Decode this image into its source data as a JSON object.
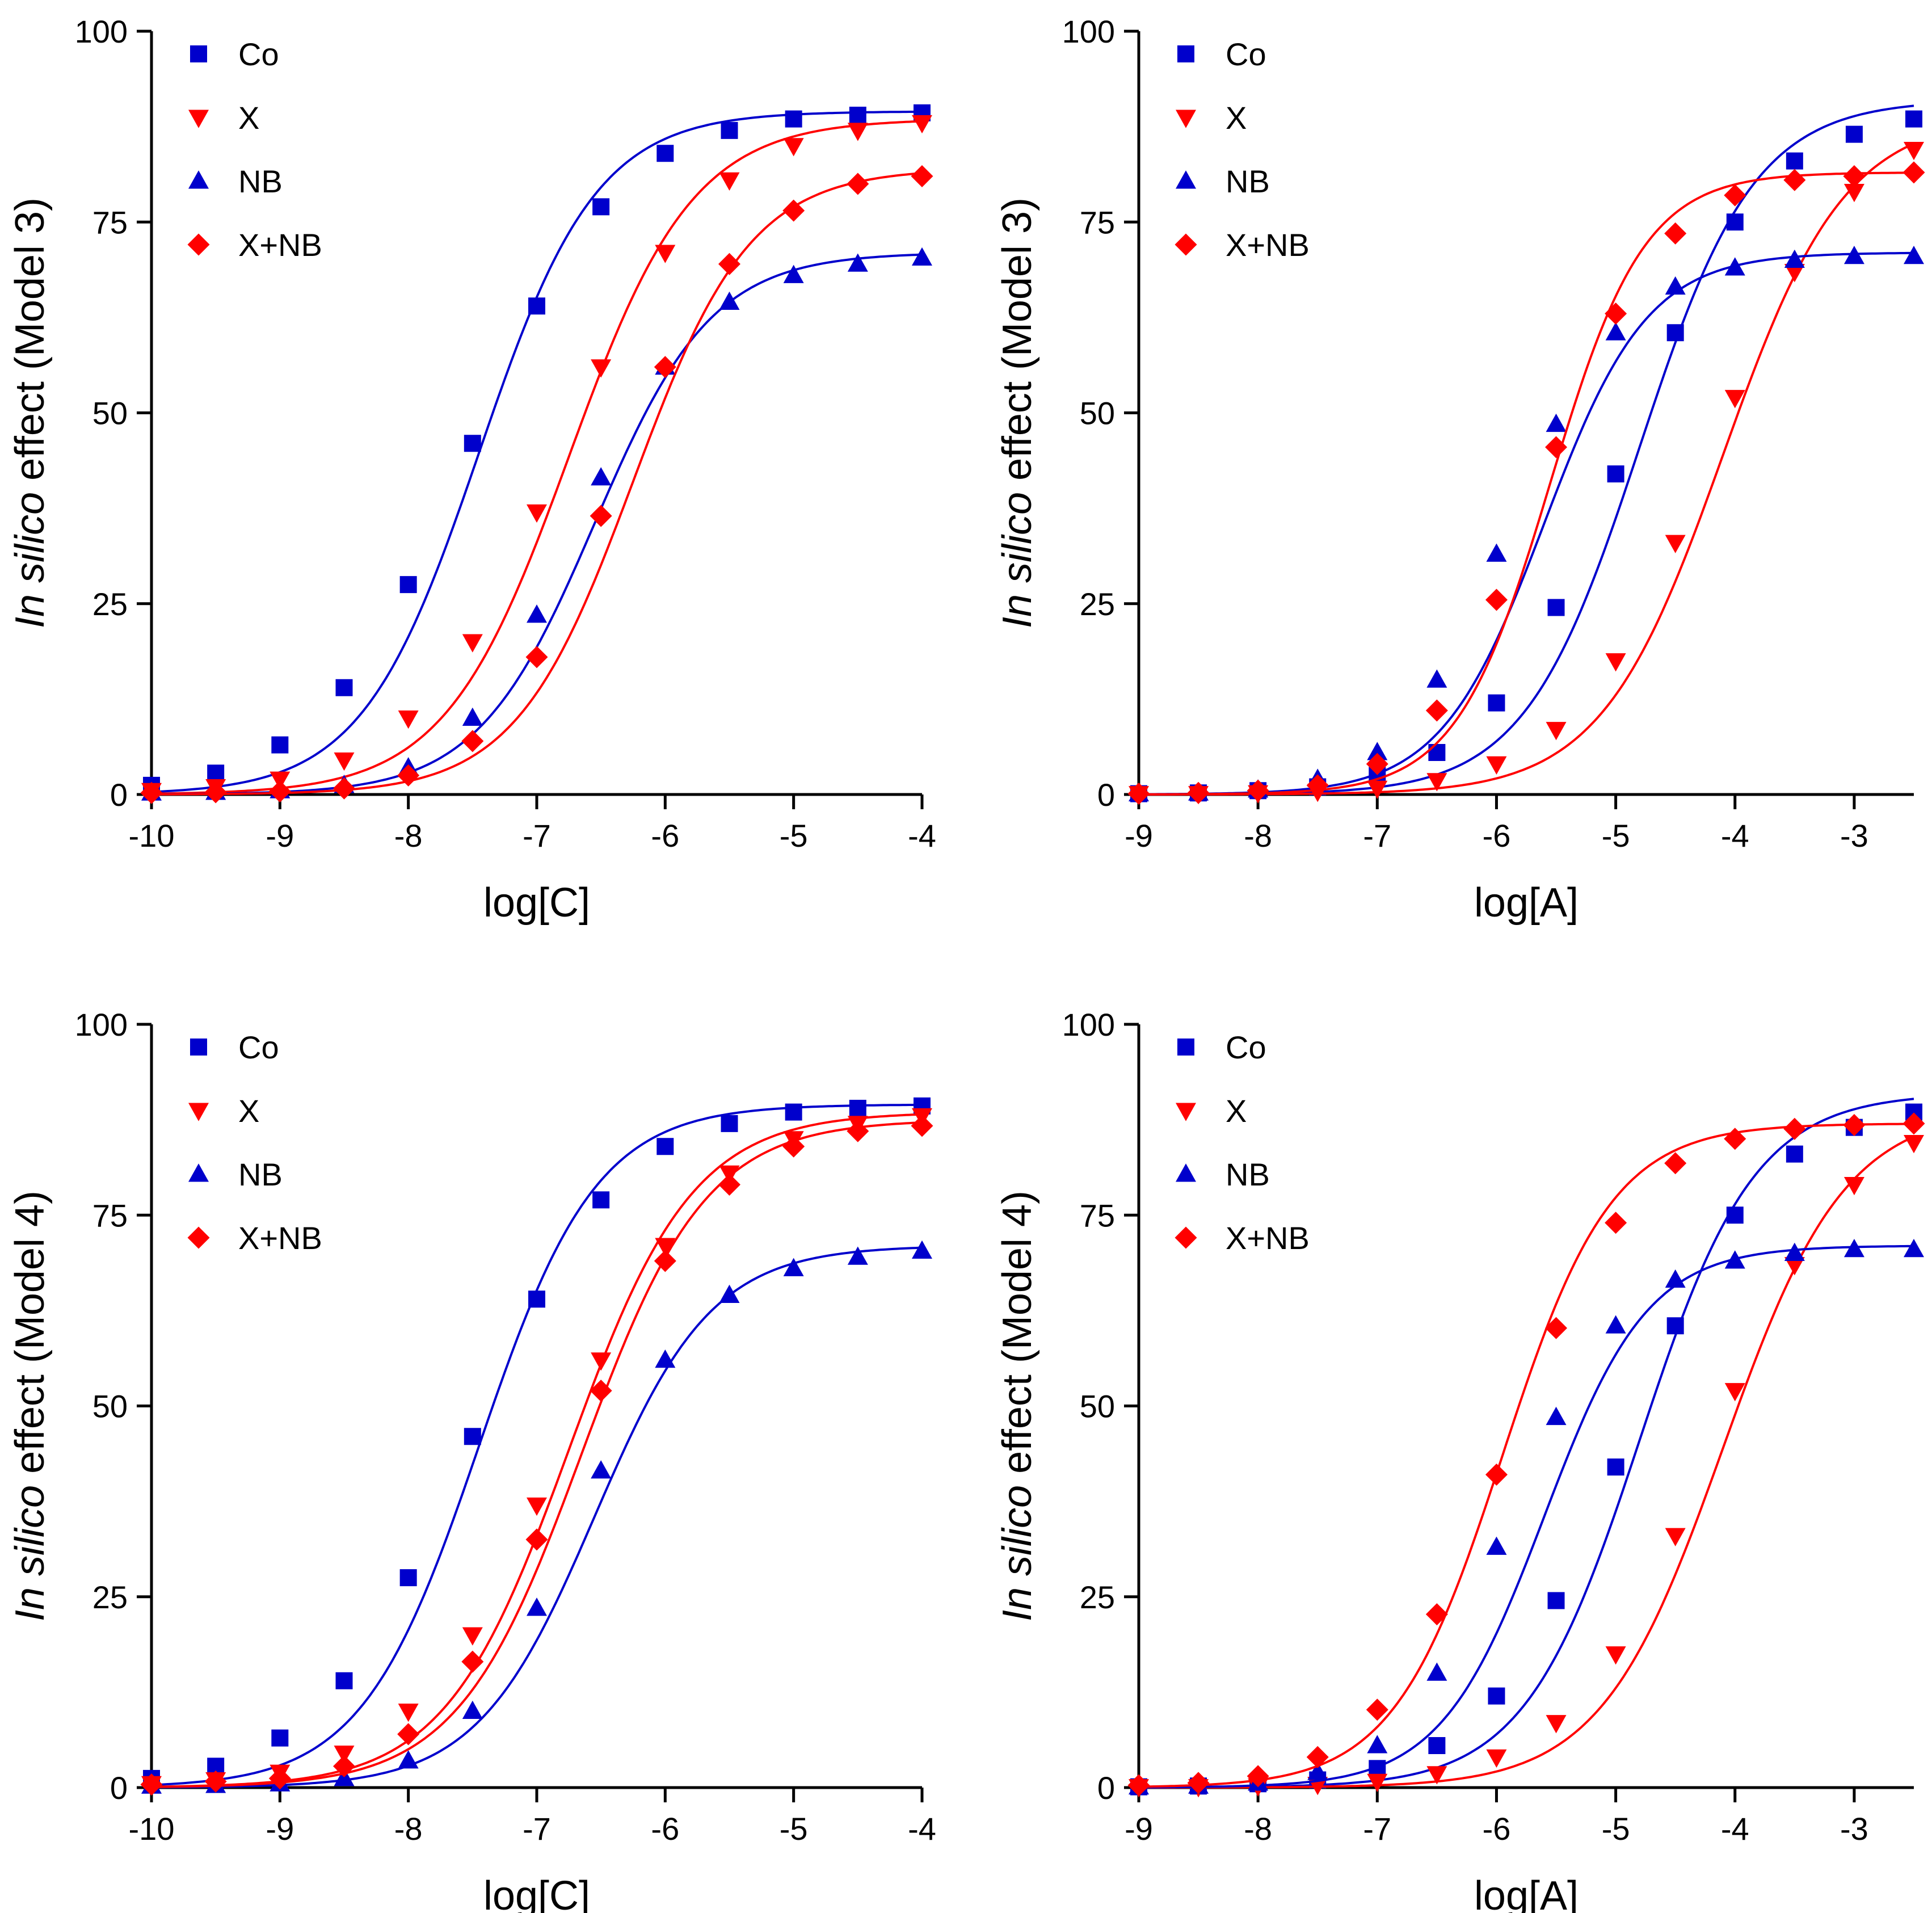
{
  "colors": {
    "blue": "#0000cc",
    "red": "#ff0000",
    "axis": "#000000"
  },
  "chart_data": [
    {
      "type": "line",
      "xlabel": "log[C]",
      "ylabel_italic": "In silico",
      "ylabel_rest": " effect (Model 3)",
      "xlim": [
        -10,
        -4
      ],
      "ylim": [
        0,
        100
      ],
      "xticks": [
        "-10",
        "-9",
        "-8",
        "-7",
        "-6",
        "-5",
        "-4"
      ],
      "yticks": [
        "0",
        "25",
        "50",
        "75",
        "100"
      ],
      "grid": false,
      "legend_position": "top-left",
      "x": [
        -10,
        -9.5,
        -9,
        -8.5,
        -8,
        -7.5,
        -7,
        -6.5,
        -6,
        -5.5,
        -5,
        -4.5,
        -4
      ],
      "series": [
        {
          "name": "Co",
          "marker": "square",
          "color": "blue",
          "fit": {
            "bottom": 0,
            "top": 89.5,
            "logec50": -7.45,
            "hill": 0.95
          },
          "values": [
            1.2,
            2.8,
            6.5,
            14,
            27.5,
            46,
            64,
            77,
            84,
            87,
            88.5,
            89,
            89.3
          ]
        },
        {
          "name": "X",
          "marker": "triangle-down",
          "color": "red",
          "fit": {
            "bottom": 0,
            "top": 88.5,
            "logec50": -6.75,
            "hill": 0.9
          },
          "values": [
            0.5,
            1,
            2,
            4.5,
            10,
            20,
            37,
            56,
            71,
            80.5,
            85,
            87,
            88
          ]
        },
        {
          "name": "NB",
          "marker": "triangle-up",
          "color": "blue",
          "fit": {
            "bottom": 0,
            "top": 71,
            "logec50": -6.55,
            "hill": 0.95
          },
          "values": [
            0.2,
            0.3,
            0.5,
            1.2,
            3.5,
            10,
            23.5,
            41.5,
            56,
            64.5,
            68,
            69.5,
            70.3
          ]
        },
        {
          "name": "X+NB",
          "marker": "diamond",
          "color": "red",
          "fit": {
            "bottom": 0,
            "top": 82,
            "logec50": -6.25,
            "hill": 0.95
          },
          "values": [
            0.2,
            0.3,
            0.4,
            0.8,
            2.5,
            7,
            18,
            36.5,
            56,
            69.5,
            76.5,
            80,
            81
          ]
        }
      ]
    },
    {
      "type": "line",
      "xlabel": "log[A]",
      "ylabel_italic": "In silico",
      "ylabel_rest": " effect (Model 3)",
      "xlim": [
        -9,
        -2.5
      ],
      "ylim": [
        0,
        100
      ],
      "xticks": [
        "-9",
        "-8",
        "-7",
        "-6",
        "-5",
        "-4",
        "-3"
      ],
      "yticks": [
        "0",
        "25",
        "50",
        "75",
        "100"
      ],
      "grid": false,
      "legend_position": "top-left",
      "x": [
        -9,
        -8.5,
        -8,
        -7.5,
        -7,
        -6.5,
        -6,
        -5.5,
        -5,
        -4.5,
        -4,
        -3.5,
        -3,
        -2.5
      ],
      "series": [
        {
          "name": "Co",
          "marker": "square",
          "color": "blue",
          "fit": {
            "bottom": 0,
            "top": 91,
            "logec50": -4.8,
            "hill": 0.9
          },
          "values": [
            0.1,
            0.2,
            0.5,
            1,
            2.5,
            5.5,
            12,
            24.5,
            42,
            60.5,
            75,
            83,
            86.5,
            88.5
          ]
        },
        {
          "name": "X",
          "marker": "triangle-down",
          "color": "red",
          "fit": {
            "bottom": 0,
            "top": 89,
            "logec50": -4.1,
            "hill": 0.85
          },
          "values": [
            0.1,
            0.1,
            0.2,
            0.4,
            0.8,
            1.8,
            4,
            8.5,
            17.5,
            33,
            52,
            68.5,
            79,
            84.5
          ]
        },
        {
          "name": "NB",
          "marker": "triangle-up",
          "color": "blue",
          "fit": {
            "bottom": 0,
            "top": 71,
            "logec50": -5.6,
            "hill": 1.0
          },
          "values": [
            0.1,
            0.2,
            0.6,
            2,
            5.5,
            15,
            31.5,
            48.5,
            60.5,
            66.5,
            69,
            70,
            70.5,
            70.5
          ]
        },
        {
          "name": "X+NB",
          "marker": "diamond",
          "color": "red",
          "fit": {
            "bottom": 0,
            "top": 81.5,
            "logec50": -5.55,
            "hill": 1.1
          },
          "values": [
            0.1,
            0.2,
            0.5,
            1.2,
            4,
            11,
            25.5,
            45.5,
            63,
            73.5,
            78.5,
            80.5,
            81,
            81.5
          ]
        }
      ]
    },
    {
      "type": "line",
      "xlabel": "log[C]",
      "ylabel_italic": "In silico",
      "ylabel_rest": " effect (Model 4)",
      "xlim": [
        -10,
        -4
      ],
      "ylim": [
        0,
        100
      ],
      "xticks": [
        "-10",
        "-9",
        "-8",
        "-7",
        "-6",
        "-5",
        "-4"
      ],
      "yticks": [
        "0",
        "25",
        "50",
        "75",
        "100"
      ],
      "grid": false,
      "legend_position": "top-left",
      "x": [
        -10,
        -9.5,
        -9,
        -8.5,
        -8,
        -7.5,
        -7,
        -6.5,
        -6,
        -5.5,
        -5,
        -4.5,
        -4
      ],
      "series": [
        {
          "name": "Co",
          "marker": "square",
          "color": "blue",
          "fit": {
            "bottom": 0,
            "top": 89.5,
            "logec50": -7.45,
            "hill": 0.95
          },
          "values": [
            1.2,
            2.8,
            6.5,
            14,
            27.5,
            46,
            64,
            77,
            84,
            87,
            88.5,
            89,
            89.3
          ]
        },
        {
          "name": "X",
          "marker": "triangle-down",
          "color": "red",
          "fit": {
            "bottom": 0,
            "top": 88.5,
            "logec50": -6.75,
            "hill": 0.9
          },
          "values": [
            0.5,
            1,
            2,
            4.5,
            10,
            20,
            37,
            56,
            71,
            80.5,
            85,
            87,
            88
          ]
        },
        {
          "name": "NB",
          "marker": "triangle-up",
          "color": "blue",
          "fit": {
            "bottom": 0,
            "top": 71,
            "logec50": -6.55,
            "hill": 0.95
          },
          "values": [
            0.2,
            0.3,
            0.5,
            1.2,
            3.5,
            10,
            23.5,
            41.5,
            56,
            64.5,
            68,
            69.5,
            70.3
          ]
        },
        {
          "name": "X+NB",
          "marker": "diamond",
          "color": "red",
          "fit": {
            "bottom": 0,
            "top": 87.5,
            "logec50": -6.65,
            "hill": 0.9
          },
          "values": [
            0.4,
            0.8,
            1.2,
            2.8,
            7,
            16.5,
            32.5,
            52,
            69,
            79,
            84,
            86,
            86.7
          ]
        }
      ]
    },
    {
      "type": "line",
      "xlabel": "log[A]",
      "ylabel_italic": "In silico",
      "ylabel_rest": " effect (Model 4)",
      "xlim": [
        -9,
        -2.5
      ],
      "ylim": [
        0,
        100
      ],
      "xticks": [
        "-9",
        "-8",
        "-7",
        "-6",
        "-5",
        "-4",
        "-3"
      ],
      "yticks": [
        "0",
        "25",
        "50",
        "75",
        "100"
      ],
      "grid": false,
      "legend_position": "top-left",
      "x": [
        -9,
        -8.5,
        -8,
        -7.5,
        -7,
        -6.5,
        -6,
        -5.5,
        -5,
        -4.5,
        -4,
        -3.5,
        -3,
        -2.5
      ],
      "series": [
        {
          "name": "Co",
          "marker": "square",
          "color": "blue",
          "fit": {
            "bottom": 0,
            "top": 91,
            "logec50": -4.8,
            "hill": 0.9
          },
          "values": [
            0.1,
            0.2,
            0.5,
            1,
            2.5,
            5.5,
            12,
            24.5,
            42,
            60.5,
            75,
            83,
            86.5,
            88.5
          ]
        },
        {
          "name": "X",
          "marker": "triangle-down",
          "color": "red",
          "fit": {
            "bottom": 0,
            "top": 89,
            "logec50": -4.1,
            "hill": 0.85
          },
          "values": [
            0.1,
            0.1,
            0.2,
            0.4,
            0.8,
            1.8,
            4,
            8.5,
            17.5,
            33,
            52,
            68.5,
            79,
            84.5
          ]
        },
        {
          "name": "NB",
          "marker": "triangle-up",
          "color": "blue",
          "fit": {
            "bottom": 0,
            "top": 71,
            "logec50": -5.6,
            "hill": 1.0
          },
          "values": [
            0.1,
            0.2,
            0.6,
            2,
            5.5,
            15,
            31.5,
            48.5,
            60.5,
            66.5,
            69,
            70,
            70.5,
            70.5
          ]
        },
        {
          "name": "X+NB",
          "marker": "diamond",
          "color": "red",
          "fit": {
            "bottom": 0,
            "top": 87,
            "logec50": -5.95,
            "hill": 0.95
          },
          "values": [
            0.3,
            0.6,
            1.5,
            4,
            10.2,
            22.7,
            41,
            60.2,
            74,
            81.8,
            85,
            86.3,
            86.8,
            87
          ]
        }
      ]
    }
  ]
}
